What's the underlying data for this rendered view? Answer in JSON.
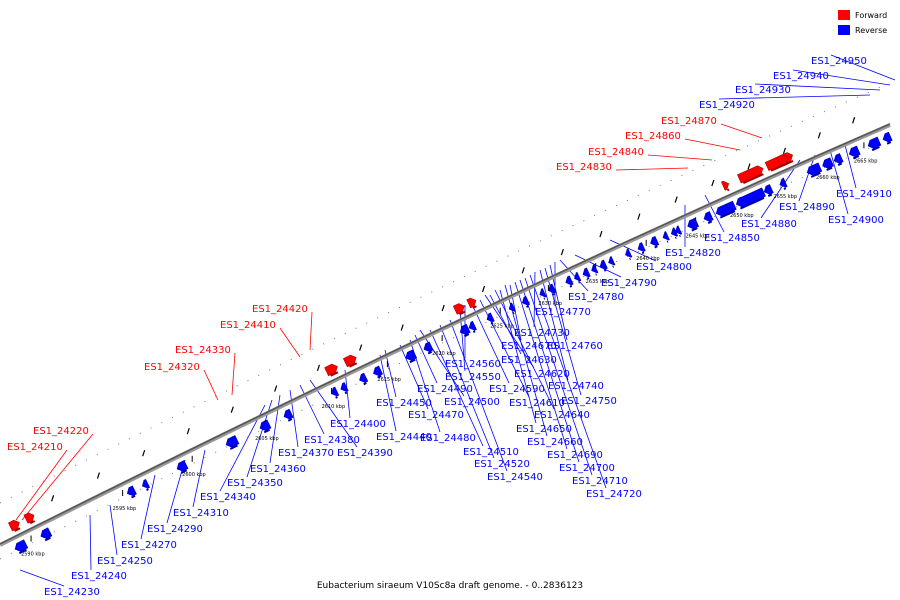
{
  "caption": "Eubacterium siraeum V10Sc8a draft genome. - 0..2836123",
  "legend": [
    {
      "label": "Forward",
      "color": "#ff0000"
    },
    {
      "label": "Reverse",
      "color": "#0000ff"
    }
  ],
  "ruler_ticks": [
    "2590 kbp",
    "2595 kbp",
    "2600 kbp",
    "2605 kbp",
    "2610 kbp",
    "2615 kbp",
    "2620 kbp",
    "2625 kbp",
    "2630 kbp",
    "2635 kbp",
    "2640 kbp",
    "2645 kbp",
    "2650 kbp",
    "2655 kbp",
    "2660 kbp",
    "2665 kbp"
  ],
  "forward_genes": [
    "ES1_24210",
    "ES1_24220",
    "ES1_24320",
    "ES1_24330",
    "ES1_24410",
    "ES1_24420",
    "ES1_24830",
    "ES1_24840",
    "ES1_24860",
    "ES1_24870"
  ],
  "reverse_genes": [
    "ES1_24230",
    "ES1_24240",
    "ES1_24250",
    "ES1_24270",
    "ES1_24290",
    "ES1_24310",
    "ES1_24340",
    "ES1_24350",
    "ES1_24360",
    "ES1_24370",
    "ES1_24380",
    "ES1_24390",
    "ES1_24400",
    "ES1_24440",
    "ES1_24450",
    "ES1_24470",
    "ES1_24480",
    "ES1_24490",
    "ES1_24500",
    "ES1_24510",
    "ES1_24520",
    "ES1_24540",
    "ES1_24550",
    "ES1_24560",
    "ES1_24590",
    "ES1_24610",
    "ES1_24620",
    "ES1_24630",
    "ES1_24640",
    "ES1_24650",
    "ES1_24660",
    "ES1_24670",
    "ES1_24690",
    "ES1_24700",
    "ES1_24710",
    "ES1_24720",
    "ES1_24730",
    "ES1_24740",
    "ES1_24750",
    "ES1_24760",
    "ES1_24770",
    "ES1_24780",
    "ES1_24790",
    "ES1_24800",
    "ES1_24820",
    "ES1_24850",
    "ES1_24880",
    "ES1_24890",
    "ES1_24900",
    "ES1_24910",
    "ES1_24920",
    "ES1_24930",
    "ES1_24940",
    "ES1_24950"
  ]
}
